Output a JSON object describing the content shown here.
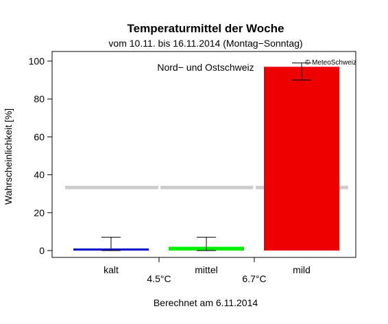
{
  "chart_data": {
    "type": "bar",
    "title": "Temperaturmittel der Woche",
    "subtitle": "vom 10.11. bis 16.11.2014 (Montag−Sonntag)",
    "region": "Nord− und Ostschweiz",
    "copyright": "© MeteoSchweiz",
    "ylabel": "Wahrscheinlichkeit [%]",
    "ylim": [
      0,
      100
    ],
    "yticks": [
      "0",
      "20",
      "40",
      "60",
      "80",
      "100"
    ],
    "categories": [
      "kalt",
      "mittel",
      "mild"
    ],
    "values": [
      1,
      2,
      97
    ],
    "error_low": [
      0,
      0,
      90
    ],
    "error_high": [
      7,
      7,
      99
    ],
    "colors": [
      "#0000cc",
      "#00ee00",
      "#ee0000"
    ],
    "climatology": 33.3,
    "climatology_color": "#cccccc",
    "thresholds": [
      "4.5°C",
      "6.7°C"
    ],
    "footer": "Berechnet am 6.11.2014"
  }
}
